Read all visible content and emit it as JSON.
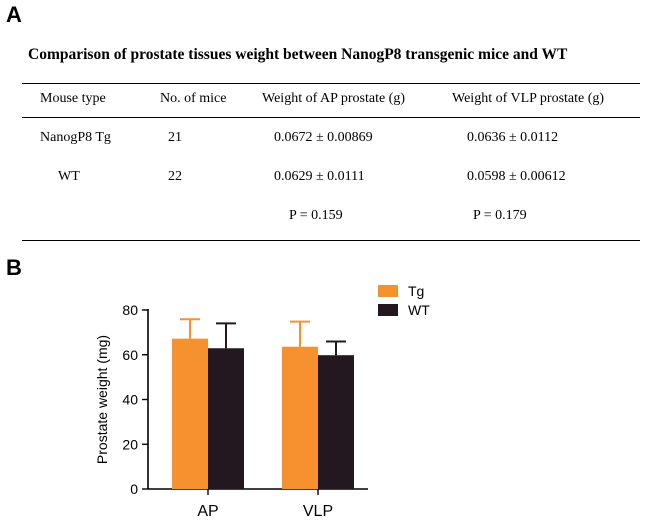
{
  "panels": {
    "a": "A",
    "b": "B"
  },
  "table": {
    "title": "Comparison of  prostate tissues weight    between NanogP8 transgenic mice and WT",
    "headers": [
      "Mouse type",
      "No. of  mice",
      "Weight of  AP prostate (g)",
      "Weight of VLP prostate (g)"
    ],
    "rows": [
      [
        "NanogP8 Tg",
        "21",
        "0.0672 ± 0.00869",
        "0.0636 ± 0.0112"
      ],
      [
        "WT",
        "22",
        "0.0629 ±  0.0111",
        "0.0598 ± 0.00612"
      ]
    ],
    "pvalues": [
      "P = 0.159",
      "P = 0.179"
    ]
  },
  "chart_data": {
    "type": "bar",
    "ylabel": "Prostate weight (mg)",
    "xlabel": "",
    "ylim": [
      0,
      80
    ],
    "yticks": [
      "0",
      "20",
      "40",
      "60",
      "80"
    ],
    "categories": [
      "AP",
      "VLP"
    ],
    "series": [
      {
        "name": "Tg",
        "color": "#f5912f",
        "values": [
          67.2,
          63.6
        ],
        "errors": [
          8.69,
          11.2
        ]
      },
      {
        "name": "WT",
        "color": "#231820",
        "values": [
          62.9,
          59.8
        ],
        "errors": [
          11.1,
          6.12
        ]
      }
    ],
    "legend_position": "top-right"
  }
}
